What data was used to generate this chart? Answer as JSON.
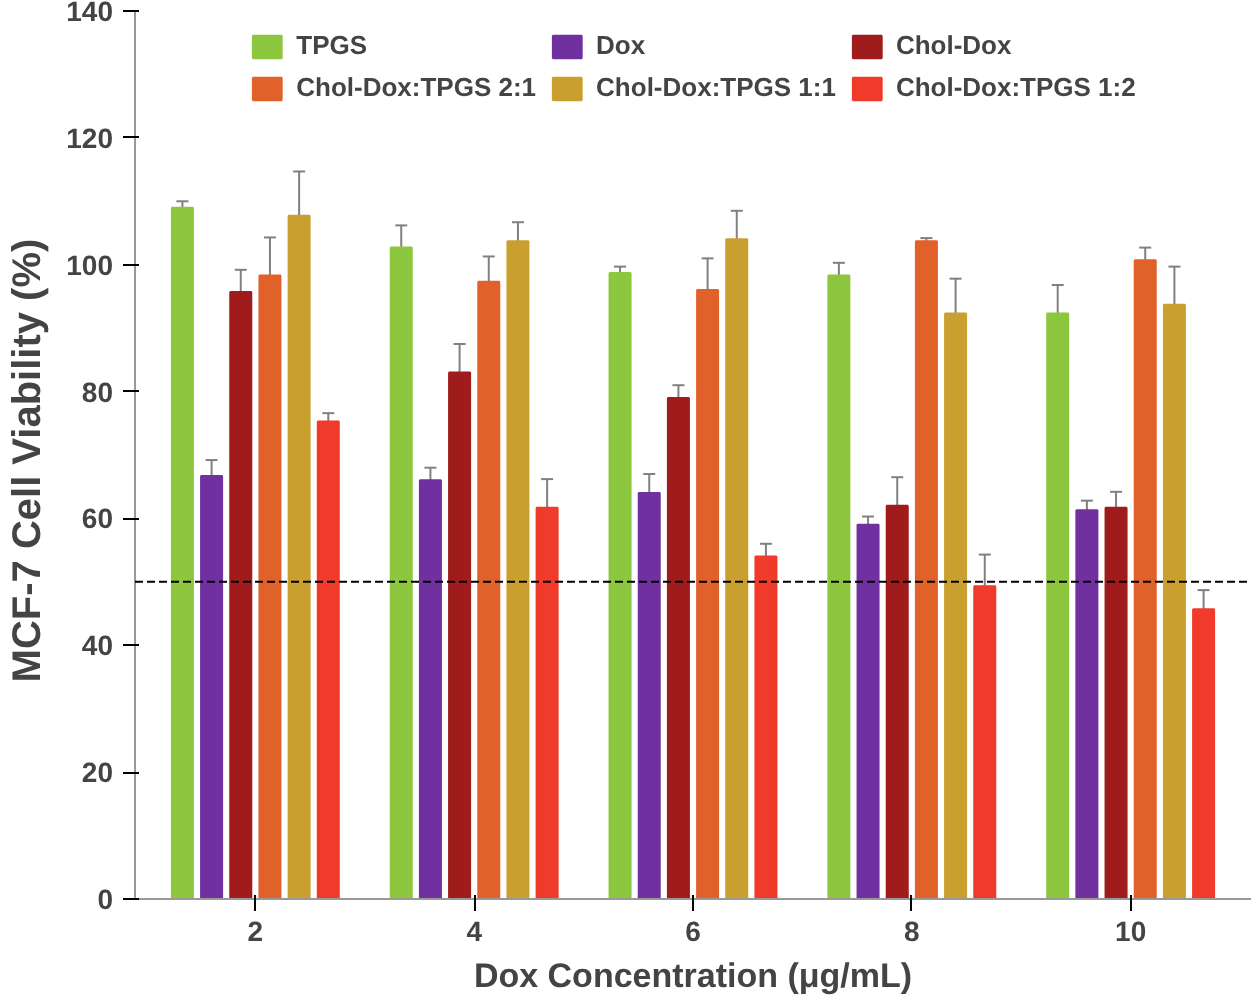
{
  "chart_data": {
    "type": "bar",
    "xlabel": "Dox Concentration (μg/mL)",
    "ylabel": "MCF-7 Cell Viability  (%)",
    "categories": [
      "2",
      "4",
      "6",
      "8",
      "10"
    ],
    "series": [
      {
        "name": "TPGS",
        "color": "#8dc63f",
        "values": [
          109,
          102.7,
          98.7,
          98.3,
          92.3
        ],
        "errors": [
          1,
          3.5,
          1,
          2,
          4.5
        ]
      },
      {
        "name": "Dox",
        "color": "#7030a0",
        "values": [
          66.7,
          66,
          64,
          59,
          61.3
        ],
        "errors": [
          2.5,
          2,
          3,
          1.3,
          1.5
        ]
      },
      {
        "name": "Chol-Dox",
        "color": "#a01c1c",
        "values": [
          95.7,
          83,
          79,
          62,
          61.7
        ],
        "errors": [
          3.5,
          4.5,
          2,
          4.5,
          2.5
        ]
      },
      {
        "name": "Chol-Dox:TPGS 2:1",
        "color": "#e0622a",
        "values": [
          98.3,
          97.3,
          96,
          103.7,
          100.7
        ],
        "errors": [
          6,
          4,
          5,
          0.5,
          2
        ]
      },
      {
        "name": "Chol-Dox:TPGS 1:1",
        "color": "#c9a030",
        "values": [
          107.7,
          103.7,
          104,
          92.3,
          93.7
        ],
        "errors": [
          7,
          3,
          4.5,
          5.5,
          6
        ]
      },
      {
        "name": "Chol-Dox:TPGS 1:2",
        "color": "#f03a2a",
        "values": [
          75.3,
          61.7,
          54,
          49.3,
          45.7
        ],
        "errors": [
          1.3,
          4.5,
          2,
          5,
          3
        ]
      }
    ],
    "ylim": [
      0,
      140
    ],
    "yticks": [
      0,
      20,
      40,
      60,
      80,
      100,
      120,
      140
    ],
    "ref_lines": [
      {
        "axis": "y",
        "value": 50,
        "color": "#000000",
        "line_style": "dashed"
      }
    ],
    "grid": false,
    "legend": "top"
  }
}
